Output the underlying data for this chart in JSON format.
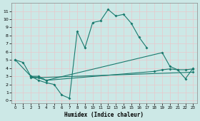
{
  "xlabel": "Humidex (Indice chaleur)",
  "bg_color": "#cce8e6",
  "grid_color": "#e8c8cc",
  "line_color": "#1a7a6e",
  "xlim": [
    -0.5,
    23.5
  ],
  "ylim": [
    -0.3,
    12
  ],
  "xticks": [
    0,
    1,
    2,
    3,
    4,
    5,
    6,
    7,
    8,
    9,
    10,
    11,
    12,
    13,
    14,
    15,
    16,
    17,
    18,
    19,
    20,
    21,
    22,
    23
  ],
  "yticks": [
    0,
    1,
    2,
    3,
    4,
    5,
    6,
    7,
    8,
    9,
    10,
    11
  ],
  "series": [
    {
      "x": [
        0,
        1,
        2,
        3,
        4,
        5,
        6,
        7,
        8,
        9,
        10,
        11,
        12,
        13,
        14,
        15,
        16,
        17
      ],
      "y": [
        5.0,
        4.7,
        3.0,
        2.5,
        2.2,
        2.0,
        0.7,
        0.3,
        8.5,
        6.5,
        9.6,
        9.8,
        11.2,
        10.4,
        10.6,
        9.5,
        7.8,
        6.5
      ]
    },
    {
      "x": [
        0,
        2,
        3,
        4,
        19,
        20,
        21,
        22,
        23
      ],
      "y": [
        5.0,
        3.0,
        3.0,
        2.5,
        5.9,
        4.2,
        3.8,
        2.7,
        4.0
      ]
    },
    {
      "x": [
        2,
        3,
        4,
        18,
        19,
        20,
        21,
        22,
        23
      ],
      "y": [
        3.0,
        2.8,
        2.5,
        3.6,
        3.8,
        3.9,
        3.8,
        3.8,
        3.9
      ]
    },
    {
      "x": [
        2,
        23
      ],
      "y": [
        2.8,
        3.5
      ]
    }
  ]
}
